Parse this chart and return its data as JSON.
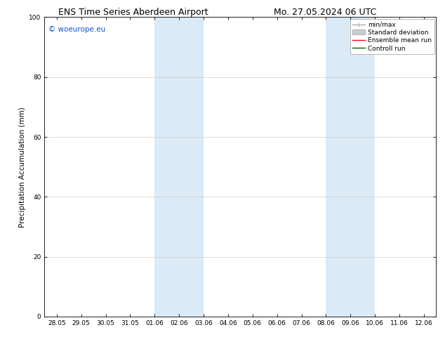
{
  "title_left": "ENS Time Series Aberdeen Airport",
  "title_right": "Mo. 27.05.2024 06 UTC",
  "ylabel": "Precipitation Accumulation (mm)",
  "ylim": [
    0,
    100
  ],
  "yticks": [
    0,
    20,
    40,
    60,
    80,
    100
  ],
  "xtick_labels": [
    "28.05",
    "29.05",
    "30.05",
    "31.05",
    "01.06",
    "02.06",
    "03.06",
    "04.06",
    "05.06",
    "06.06",
    "07.06",
    "08.06",
    "09.06",
    "10.06",
    "11.06",
    "12.06"
  ],
  "xtick_positions": [
    0.0,
    1.0,
    2.0,
    3.0,
    4.0,
    5.0,
    6.0,
    7.0,
    8.0,
    9.0,
    10.0,
    11.0,
    12.0,
    13.0,
    14.0,
    15.0
  ],
  "xlim": [
    -0.5,
    15.5
  ],
  "shaded_regions": [
    {
      "x_start": 4.0,
      "x_end": 6.0,
      "color": "#daeaf6"
    },
    {
      "x_start": 11.0,
      "x_end": 13.0,
      "color": "#daeaf6"
    }
  ],
  "watermark_text": "© woeurope.eu",
  "watermark_color": "#1155cc",
  "bg_color": "#ffffff",
  "grid_color": "#cccccc",
  "title_fontsize": 9,
  "axis_label_fontsize": 7.5,
  "tick_fontsize": 6.5,
  "legend_fontsize": 6.5,
  "watermark_fontsize": 7.5
}
